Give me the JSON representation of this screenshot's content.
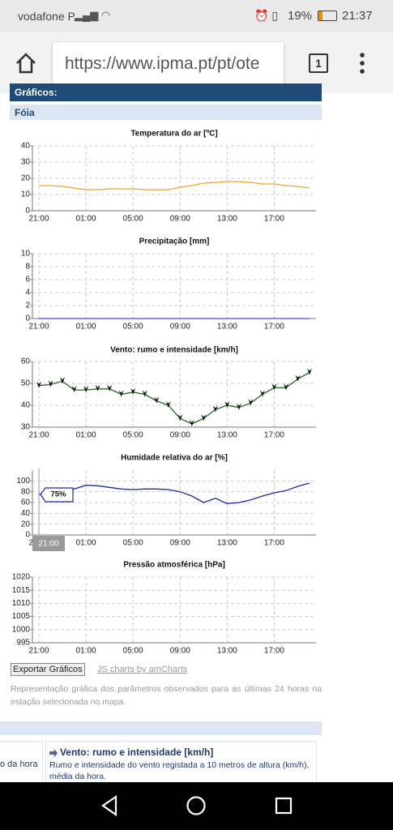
{
  "status_bar": {
    "carrier": "vodafone P",
    "battery": "19%",
    "time": "21:37"
  },
  "browser": {
    "url": "https://www.ipma.pt/pt/ote",
    "tab_count": "1"
  },
  "section": {
    "title": "Gráficos:",
    "station": "Fóia"
  },
  "chart_data": [
    {
      "type": "line",
      "title": "Temperatura do ar [ºC]",
      "categories": [
        "21:00",
        null,
        null,
        null,
        "01:00",
        null,
        null,
        null,
        "05:00",
        null,
        null,
        null,
        "09:00",
        null,
        null,
        null,
        "13:00",
        null,
        null,
        null,
        "17:00",
        null,
        null,
        null
      ],
      "values": [
        15.5,
        15.5,
        15,
        14,
        13,
        13,
        13.5,
        13.5,
        13.5,
        13,
        13,
        13,
        14.5,
        15.5,
        17,
        17.5,
        18,
        18,
        17.5,
        16.5,
        16.5,
        15.5,
        15,
        14
      ],
      "color": "#f0a030",
      "ylim": [
        0,
        40
      ],
      "yticks": [
        0,
        10,
        20,
        30,
        40
      ],
      "grid": true
    },
    {
      "type": "line",
      "title": "Precipitação [mm]",
      "categories": [
        "21:00",
        null,
        null,
        null,
        "01:00",
        null,
        null,
        null,
        "05:00",
        null,
        null,
        null,
        "09:00",
        null,
        null,
        null,
        "13:00",
        null,
        null,
        null,
        "17:00",
        null,
        null,
        null
      ],
      "values": [
        0,
        0,
        0,
        0,
        0,
        0,
        0,
        0,
        0,
        0,
        0,
        0,
        0,
        0,
        0,
        0,
        0,
        0,
        0,
        0,
        0,
        0,
        0,
        0
      ],
      "color": "#3355cc",
      "ylim": [
        0,
        10
      ],
      "yticks": [
        0,
        2,
        4,
        6,
        8,
        10
      ],
      "grid": true
    },
    {
      "type": "line",
      "title": "Vento: rumo e intensidade [km/h]",
      "categories": [
        "21:00",
        null,
        null,
        null,
        "01:00",
        null,
        null,
        null,
        "05:00",
        null,
        null,
        null,
        "09:00",
        null,
        null,
        null,
        "13:00",
        null,
        null,
        null,
        "17:00",
        null,
        null,
        null
      ],
      "values": [
        49,
        49.5,
        51,
        47,
        47,
        47.5,
        47.5,
        45,
        46,
        45,
        42,
        40,
        34,
        31.5,
        34,
        38,
        40,
        39,
        41,
        45,
        48,
        48,
        52,
        55
      ],
      "color": "#1f6b1f",
      "marker": "arrow",
      "ylim": [
        30,
        60
      ],
      "yticks": [
        30,
        40,
        50,
        60
      ],
      "grid": true
    },
    {
      "type": "line",
      "title": "Humidade relativa do ar [%]",
      "categories": [
        "21:00",
        null,
        null,
        null,
        "01:00",
        null,
        null,
        null,
        "05:00",
        null,
        null,
        null,
        "09:00",
        null,
        null,
        null,
        "13:00",
        null,
        null,
        null,
        "17:00",
        null,
        null,
        null
      ],
      "values": [
        75,
        75,
        80,
        85,
        92,
        91,
        88,
        85,
        84,
        85,
        85,
        84,
        80,
        72,
        60,
        68,
        58,
        60,
        65,
        72,
        78,
        82,
        90,
        96
      ],
      "value_labels": [
        "75%",
        null,
        null,
        null,
        null,
        null,
        null,
        null,
        null,
        null,
        null,
        null,
        null,
        null,
        null,
        null,
        null,
        null,
        null,
        null,
        null,
        null,
        null,
        null
      ],
      "color": "#1a2a9a",
      "ylim": [
        0,
        120
      ],
      "yticks": [
        0,
        20,
        40,
        60,
        80,
        100
      ],
      "grid": true
    },
    {
      "type": "line",
      "title": "Pressão atmosférica [hPa]",
      "categories": [
        "21:00",
        null,
        null,
        null,
        "01:00",
        null,
        null,
        null,
        "05:00",
        null,
        null,
        null,
        "09:00",
        null,
        null,
        null,
        "13:00",
        null,
        null,
        null,
        "17:00",
        null,
        null,
        null
      ],
      "values": [
        null,
        null,
        null,
        null,
        null,
        null,
        null,
        null,
        null,
        null,
        null,
        null,
        null,
        null,
        null,
        null,
        null,
        null,
        null,
        null,
        null,
        null,
        null,
        null
      ],
      "color": "#3355cc",
      "ylim": [
        995,
        1020
      ],
      "yticks": [
        995,
        1000,
        1005,
        1010,
        1015,
        1020
      ],
      "grid": true
    }
  ],
  "export_button": "Exportar Gráficos",
  "credit_link": "JS charts by amCharts",
  "description": "Representação gráfica dos parâmetros observados para as últimas 24 horas na estação selecionada no mapa.",
  "info_cards": [
    {
      "text": "o da hora"
    },
    {
      "title": "Vento: rumo e intensidade [km/h]",
      "text": "Rumo e intensidade do vento registada a 10 metros de altura (km/h), média da hora."
    }
  ]
}
